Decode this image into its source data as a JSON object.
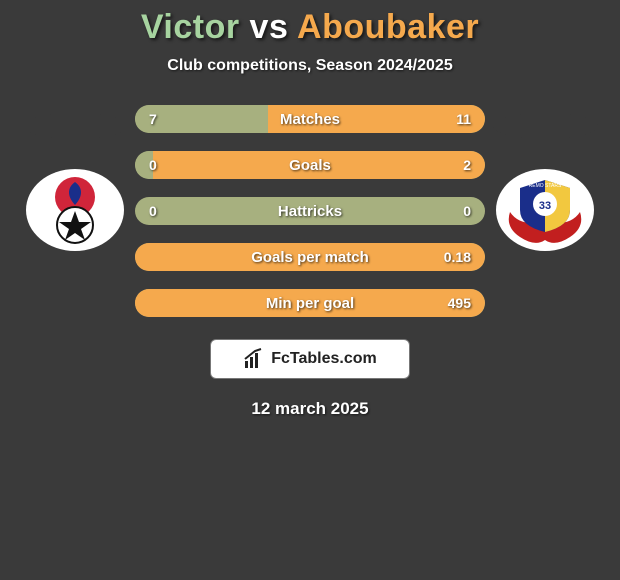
{
  "title": {
    "player1": "Victor",
    "vs": " vs ",
    "player2": "Aboubaker",
    "player1_color": "#a7d4a0",
    "vs_color": "#ffffff",
    "player2_color": "#f5a94d"
  },
  "subtitle": "Club competitions, Season 2024/2025",
  "colors": {
    "background": "#3a3a3a",
    "player1_accent": "#3a3a3a",
    "player2_accent": "#3a3a3a",
    "pill_left_bg": "#a7b07f",
    "pill_right_bg": "#f5a94d",
    "footer_bg": "#ffffff",
    "footer_border": "#777777",
    "footer_text": "#222222"
  },
  "stats": [
    {
      "label": "Matches",
      "left_val": "7",
      "right_val": "11",
      "left_pct": 38,
      "right_pct": 62,
      "show_vals": true
    },
    {
      "label": "Goals",
      "left_val": "0",
      "right_val": "2",
      "left_pct": 5,
      "right_pct": 95,
      "show_vals": true
    },
    {
      "label": "Hattricks",
      "left_val": "0",
      "right_val": "0",
      "left_pct": 0,
      "right_pct": 0,
      "show_vals": true
    },
    {
      "label": "Goals per match",
      "left_val": "",
      "right_val": "0.18",
      "left_pct": 0,
      "right_pct": 100,
      "show_vals": true
    },
    {
      "label": "Min per goal",
      "left_val": "",
      "right_val": "495",
      "left_pct": 0,
      "right_pct": 100,
      "show_vals": true
    }
  ],
  "footer_brand": "FcTables.com",
  "date": "12 march 2025"
}
